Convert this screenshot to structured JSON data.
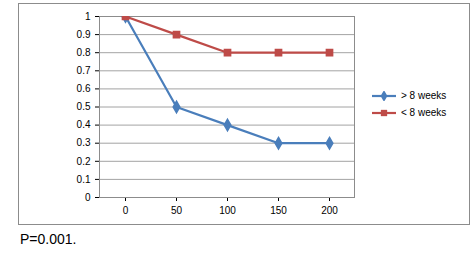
{
  "chart_data": {
    "type": "line",
    "categories": [
      "0",
      "50",
      "100",
      "150",
      "200"
    ],
    "series": [
      {
        "name": "> 8 weeks",
        "color": "#4a7ebb",
        "marker": "diamond",
        "values": [
          1,
          0.5,
          0.4,
          0.3,
          0.3
        ]
      },
      {
        "name": "< 8 weeks",
        "color": "#be4b48",
        "marker": "square",
        "values": [
          1,
          0.9,
          0.8,
          0.8,
          0.8
        ]
      }
    ],
    "ylim": [
      0,
      1
    ],
    "yticks": [
      0,
      0.1,
      0.2,
      0.3,
      0.4,
      0.5,
      0.6,
      0.7,
      0.8,
      0.9,
      1
    ],
    "grid": true,
    "legend": "right",
    "caption": "P=0.001."
  }
}
